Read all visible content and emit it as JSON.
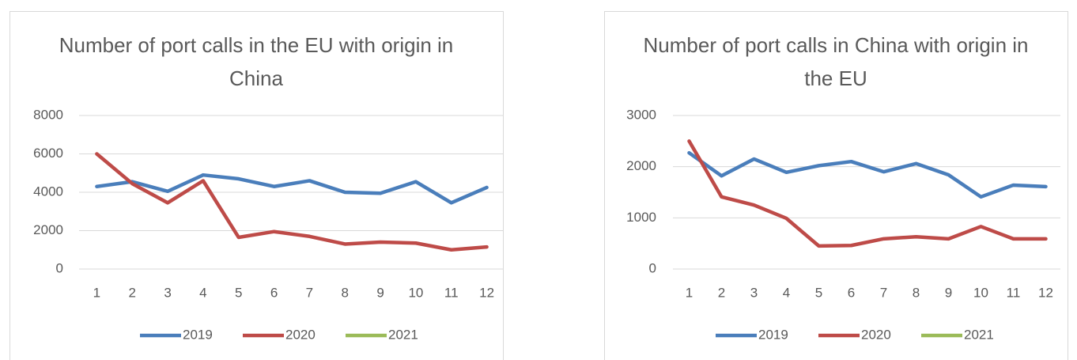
{
  "chart_data": [
    {
      "type": "line",
      "title": "Number of port calls in the EU with origin in China",
      "categories": [
        "1",
        "2",
        "3",
        "4",
        "5",
        "6",
        "7",
        "8",
        "9",
        "10",
        "11",
        "12"
      ],
      "series": [
        {
          "name": "2019",
          "color": "#4a7ebb",
          "values": [
            4300,
            4550,
            4050,
            4900,
            4700,
            4300,
            4600,
            4000,
            3950,
            4550,
            3450,
            4250
          ]
        },
        {
          "name": "2020",
          "color": "#be4b48",
          "values": [
            6000,
            4450,
            3450,
            4600,
            1650,
            1950,
            1700,
            1300,
            1400,
            1350,
            1000,
            1150
          ]
        },
        {
          "name": "2021",
          "color": "#9bbb59",
          "values": [
            null,
            null,
            null,
            null,
            null,
            null,
            null,
            null,
            null,
            null,
            null,
            null
          ]
        }
      ],
      "ylim": [
        0,
        8000
      ],
      "yticks": [
        0,
        2000,
        4000,
        6000,
        8000
      ],
      "grid": true,
      "legend": "bottom"
    },
    {
      "type": "line",
      "title": "Number of port calls in China with origin in the EU",
      "categories": [
        "1",
        "2",
        "3",
        "4",
        "5",
        "6",
        "7",
        "8",
        "9",
        "10",
        "11",
        "12"
      ],
      "series": [
        {
          "name": "2019",
          "color": "#4a7ebb",
          "values": [
            2270,
            1820,
            2150,
            1890,
            2020,
            2100,
            1900,
            2060,
            1840,
            1410,
            1640,
            1610
          ]
        },
        {
          "name": "2020",
          "color": "#be4b48",
          "values": [
            2500,
            1410,
            1250,
            990,
            450,
            460,
            590,
            630,
            590,
            830,
            590,
            590
          ]
        },
        {
          "name": "2021",
          "color": "#9bbb59",
          "values": [
            null,
            null,
            null,
            null,
            null,
            null,
            null,
            null,
            null,
            null,
            null,
            null
          ]
        }
      ],
      "ylim": [
        0,
        3000
      ],
      "yticks": [
        0,
        1000,
        2000,
        3000
      ],
      "grid": true,
      "legend": "bottom"
    }
  ]
}
